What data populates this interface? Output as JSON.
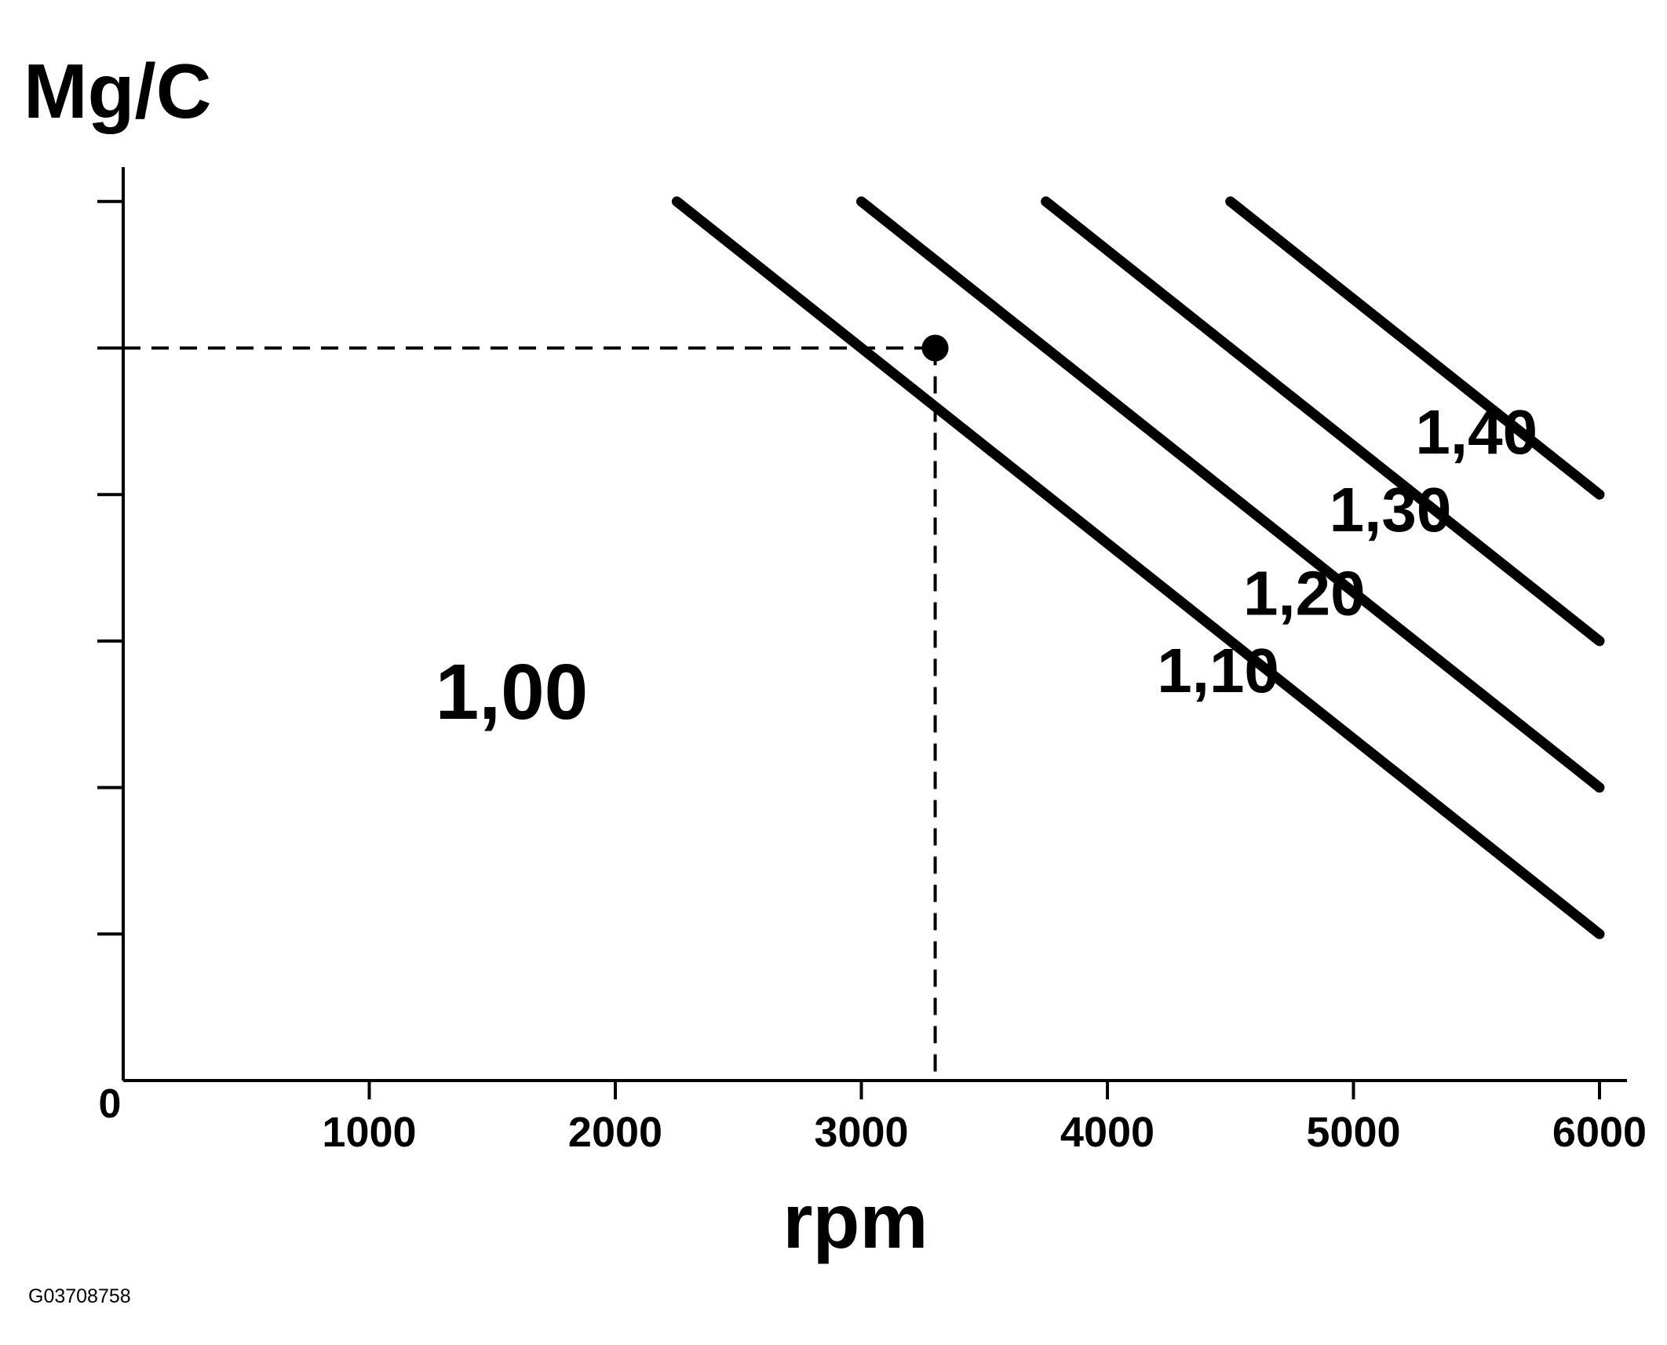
{
  "chart_data": {
    "type": "line",
    "ylabel": "Mg/C",
    "xlabel": "rpm",
    "origin_label": "0",
    "x_ticks": [
      1000,
      2000,
      3000,
      4000,
      5000,
      6000
    ],
    "x_tick_labels": [
      "1000",
      "2000",
      "3000",
      "4000",
      "5000",
      "6000"
    ],
    "xlim": [
      0,
      6100
    ],
    "ylim": [
      0,
      6.3
    ],
    "y_tick_count": 6,
    "region_label": "1,00",
    "series": [
      {
        "name": "1,10",
        "x": [
          2250,
          6000
        ],
        "y": [
          6,
          1
        ]
      },
      {
        "name": "1,20",
        "x": [
          3000,
          6000
        ],
        "y": [
          6,
          2
        ]
      },
      {
        "name": "1,30",
        "x": [
          3750,
          6000
        ],
        "y": [
          6,
          3
        ]
      },
      {
        "name": "1,40",
        "x": [
          4500,
          6000
        ],
        "y": [
          6,
          4
        ]
      }
    ],
    "marker": {
      "x": 3300,
      "y": 5
    },
    "figure_id": "G03708758"
  }
}
